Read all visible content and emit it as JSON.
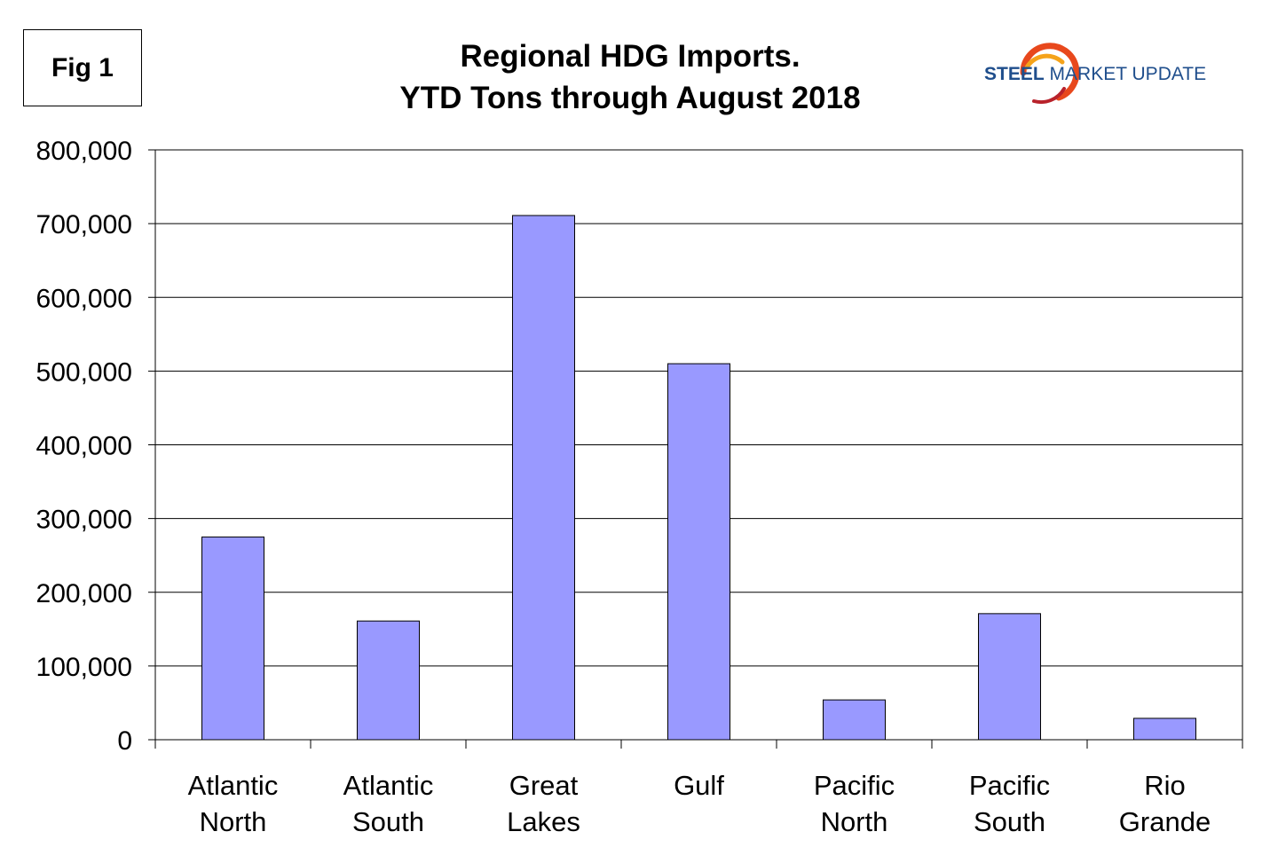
{
  "figure": {
    "label": "Fig 1"
  },
  "logo": {
    "word1": "STEEL",
    "word2": "MARKET",
    "word3": "UPDATE",
    "accent_colors": [
      "#e8481c",
      "#f5a31a",
      "#b8222b"
    ],
    "text_color": "#1f4e8c"
  },
  "chart_data": {
    "type": "bar",
    "title": [
      "Regional HDG Imports.",
      "YTD Tons through August 2018"
    ],
    "categories": [
      [
        "Atlantic",
        "North"
      ],
      [
        "Atlantic",
        "South"
      ],
      [
        "Great",
        "Lakes"
      ],
      [
        "Gulf"
      ],
      [
        "Pacific",
        "North"
      ],
      [
        "Pacific",
        "South"
      ],
      [
        "Rio",
        "Grande"
      ]
    ],
    "values": [
      275000,
      161000,
      711000,
      510000,
      54000,
      171000,
      29000
    ],
    "ylim": [
      0,
      800000
    ],
    "yticks": [
      0,
      100000,
      200000,
      300000,
      400000,
      500000,
      600000,
      700000,
      800000
    ],
    "ytick_labels": [
      "0",
      "100,000",
      "200,000",
      "300,000",
      "400,000",
      "500,000",
      "600,000",
      "700,000",
      "800,000"
    ],
    "xlabel": "",
    "ylabel": "",
    "grid": true,
    "bar_color": "#9999ff",
    "bar_edge_color": "#000000"
  }
}
